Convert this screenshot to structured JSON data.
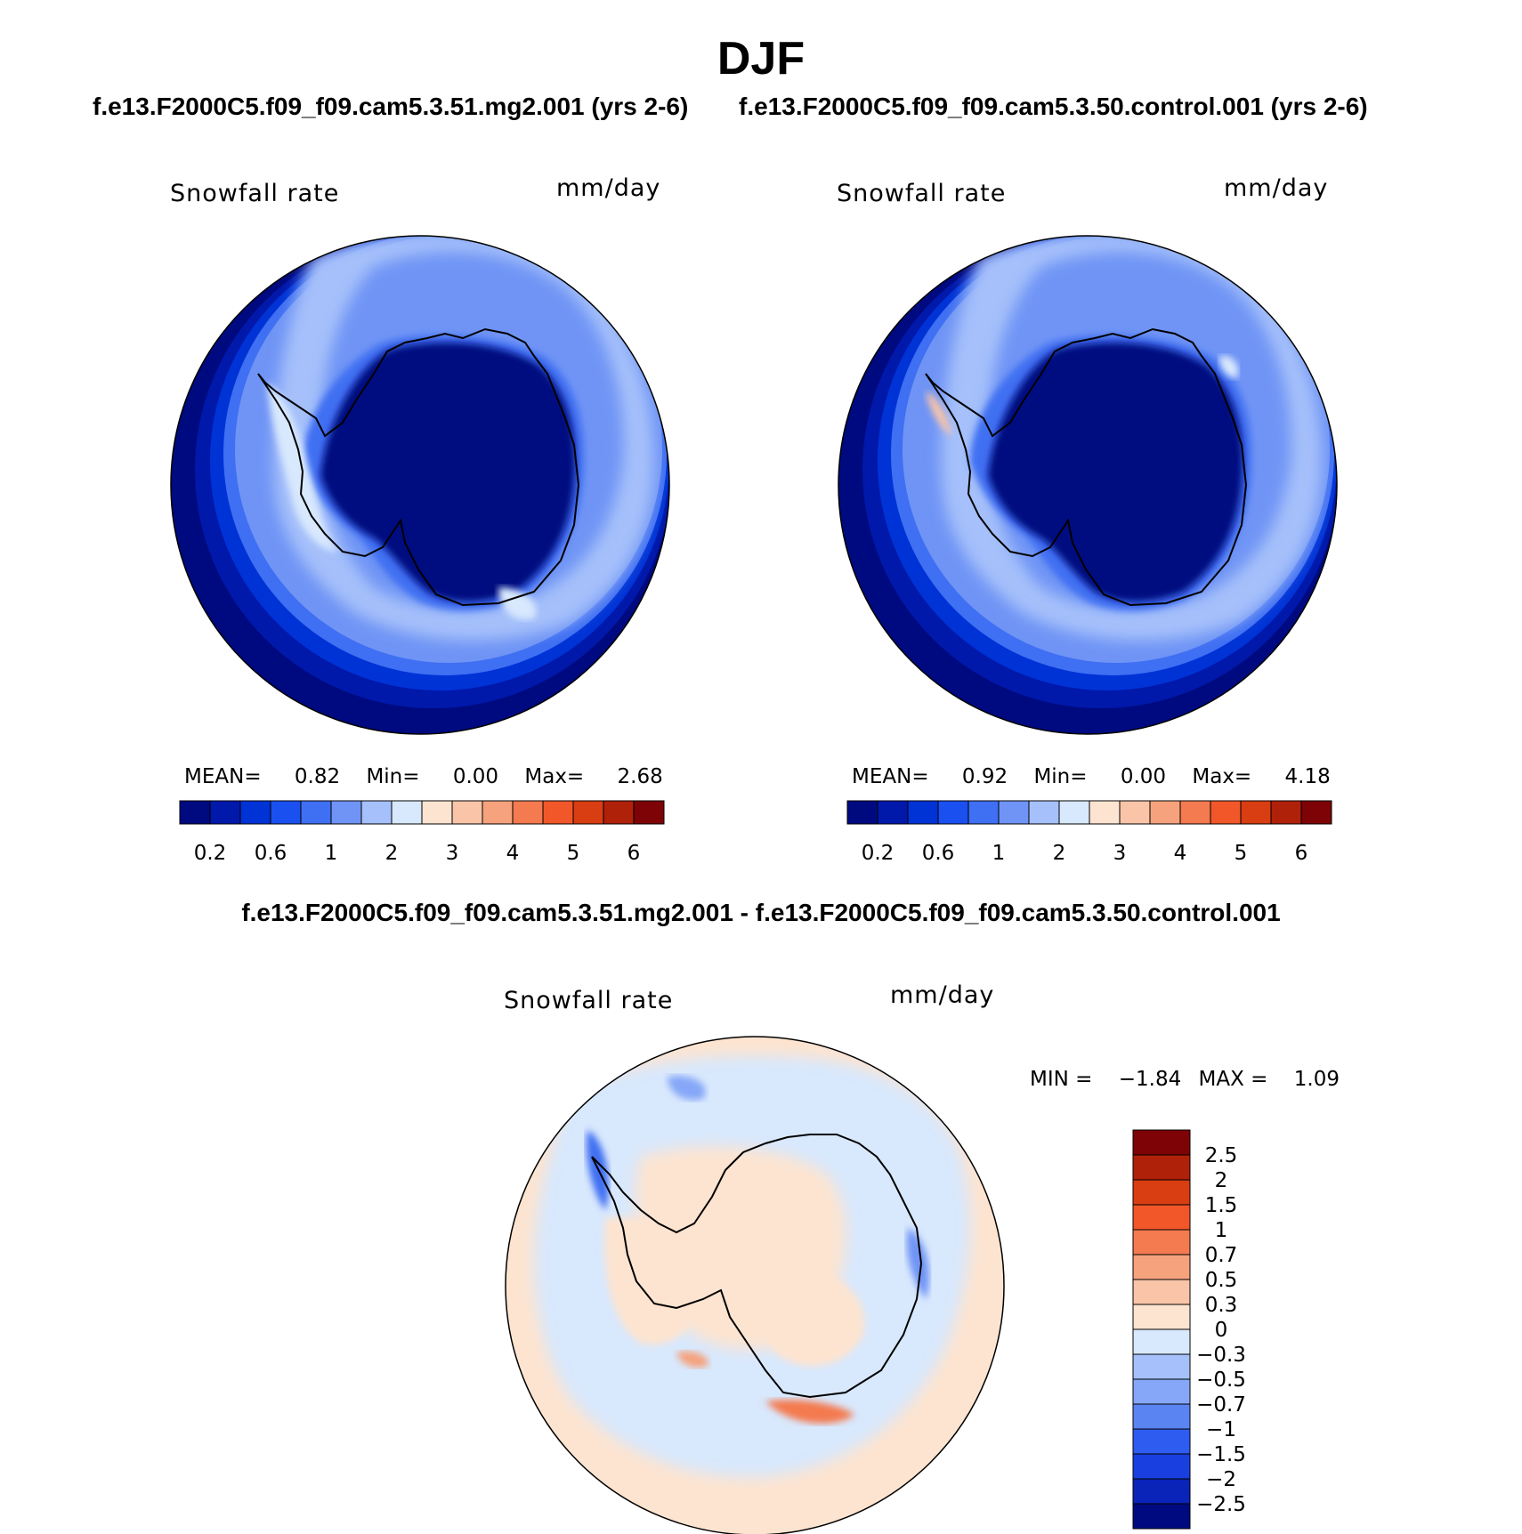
{
  "title": "DJF",
  "panels": [
    {
      "subtitle": "f.e13.F2000C5.f09_f09.cam5.3.51.mg2.001 (yrs 2-6)",
      "variable": "Snowfall rate",
      "units": "mm/day",
      "stats": {
        "mean_label": "MEAN=",
        "mean": "0.82",
        "min_label": "Min=",
        "min": "0.00",
        "max_label": "Max=",
        "max": "2.68"
      }
    },
    {
      "subtitle": "f.e13.F2000C5.f09_f09.cam5.3.50.control.001 (yrs 2-6)",
      "variable": "Snowfall rate",
      "units": "mm/day",
      "stats": {
        "mean_label": "MEAN=",
        "mean": "0.92",
        "min_label": "Min=",
        "min": "0.00",
        "max_label": "Max=",
        "max": "4.18"
      }
    }
  ],
  "field_colorbar": {
    "colors": [
      "#000a80",
      "#0019ab",
      "#0033d6",
      "#1a50f0",
      "#3f6ff2",
      "#6f94f5",
      "#a5c0fa",
      "#d8e8fd",
      "#fde4d0",
      "#f9c4a8",
      "#f5a27d",
      "#f47a4f",
      "#f2572a",
      "#d93d12",
      "#b0210a",
      "#7d0306"
    ],
    "tick_labels": [
      "0.2",
      "0.6",
      "1",
      "2",
      "3",
      "4",
      "5",
      "6"
    ]
  },
  "diff": {
    "title": "f.e13.F2000C5.f09_f09.cam5.3.51.mg2.001 - f.e13.F2000C5.f09_f09.cam5.3.50.control.001",
    "variable": "Snowfall rate",
    "units": "mm/day",
    "min_label": "MIN =",
    "min": "−1.84",
    "max_label": "MAX =",
    "max": "1.09",
    "colorbar": {
      "colors_top_to_bottom": [
        "#7d0306",
        "#b0210a",
        "#d93d12",
        "#f2572a",
        "#f47a4f",
        "#f5a27d",
        "#f9c4a8",
        "#fde4d0",
        "#d8e8fd",
        "#a5c0fa",
        "#86a7f7",
        "#5b84f3",
        "#2f5cf0",
        "#1a3fe0",
        "#0a23b8",
        "#000a80"
      ],
      "tick_labels": [
        "2.5",
        "2",
        "1.5",
        "1",
        "0.7",
        "0.5",
        "0.3",
        "0",
        "−0.3",
        "−0.5",
        "−0.7",
        "−1",
        "−1.5",
        "−2",
        "−2.5"
      ]
    }
  }
}
